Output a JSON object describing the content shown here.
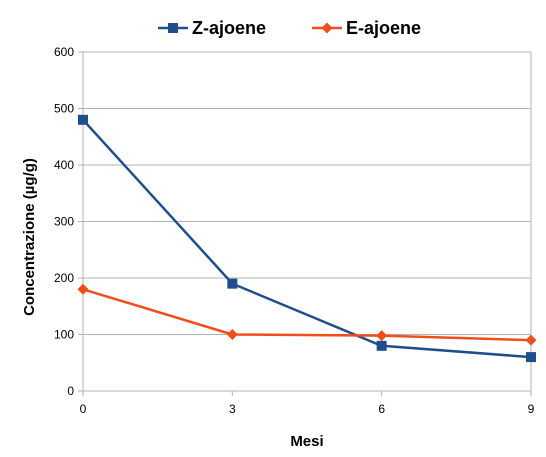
{
  "chart_data": {
    "type": "line",
    "title": "",
    "xlabel": "Mesi",
    "ylabel": "Concentrazione (µg/g)",
    "x": [
      0,
      3,
      6,
      9
    ],
    "x_tick_labels": [
      "0",
      "3",
      "6",
      "9"
    ],
    "xlim": [
      0,
      9
    ],
    "ylim": [
      0,
      600
    ],
    "y_ticks": [
      0,
      100,
      200,
      300,
      400,
      500,
      600
    ],
    "y_tick_labels": [
      "0",
      "100",
      "200",
      "300",
      "400",
      "500",
      "600"
    ],
    "grid": true,
    "legend_position": "top",
    "series": [
      {
        "name": "Z-ajoene",
        "values": [
          480,
          190,
          80,
          60
        ],
        "color": "#1f4e8c",
        "marker": "square"
      },
      {
        "name": "E-ajoene",
        "values": [
          180,
          100,
          98,
          90
        ],
        "color": "#f04e1c",
        "marker": "diamond"
      }
    ]
  }
}
